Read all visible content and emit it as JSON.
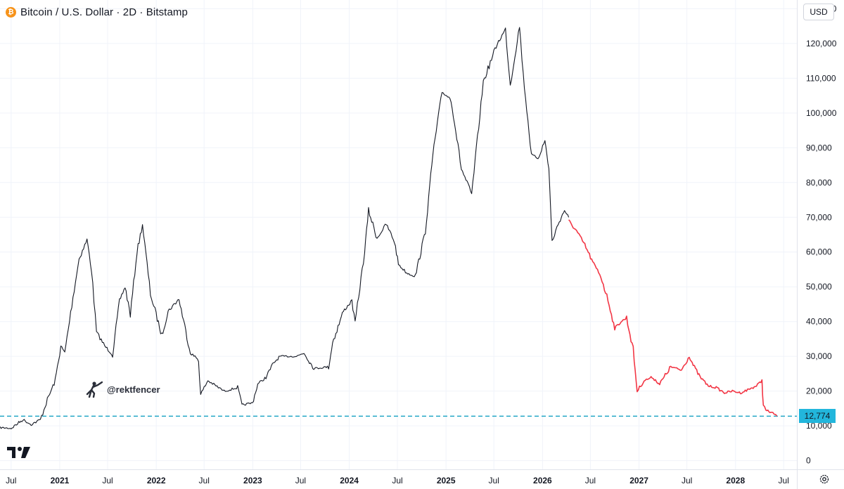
{
  "header": {
    "title": "Bitcoin / U.S. Dollar · 2D · Bitstamp",
    "icon": "bitcoin-icon",
    "icon_glyph": "₿",
    "icon_color": "#f7931a"
  },
  "currency_button": {
    "label": "USD"
  },
  "watermark": {
    "handle": "@rektfencer",
    "icon": "fencer-icon"
  },
  "logo": {
    "icon": "tradingview-logo-icon"
  },
  "settings": {
    "icon": "settings-gear-icon"
  },
  "colors": {
    "history_line": "#131722",
    "projection_line": "#f23645",
    "support_line": "#22a6c6",
    "grid": "#f0f3fa",
    "axis_text": "#131722",
    "badge_bg": "#22b6dc"
  },
  "chart_data": {
    "type": "line",
    "title": "Bitcoin / U.S. Dollar · 2D · Bitstamp",
    "xlabel": "",
    "ylabel": "",
    "x_scale": "time",
    "xlim": [
      "2020-05-20",
      "2028-08-20"
    ],
    "ylim": [
      -2500,
      132500
    ],
    "y_ticks": [
      0,
      10000,
      20000,
      30000,
      40000,
      50000,
      60000,
      70000,
      80000,
      90000,
      100000,
      110000,
      120000,
      130000
    ],
    "y_tick_labels": [
      "0",
      "10,000",
      "20,000",
      "30,000",
      "40,000",
      "50,000",
      "60,000",
      "70,000",
      "80,000",
      "90,000",
      "100,000",
      "110,000",
      "120,000",
      "130,000"
    ],
    "x_ticks": [
      "2020-07-01",
      "2021-01-01",
      "2021-07-01",
      "2022-01-01",
      "2022-07-01",
      "2023-01-01",
      "2023-07-01",
      "2024-01-01",
      "2024-07-01",
      "2025-01-01",
      "2025-07-01",
      "2026-01-01",
      "2026-07-01",
      "2027-01-01",
      "2027-07-01",
      "2028-01-01",
      "2028-07-01"
    ],
    "x_tick_labels": [
      "Jul",
      "2021",
      "Jul",
      "2022",
      "Jul",
      "2023",
      "Jul",
      "2024",
      "Jul",
      "2025",
      "Jul",
      "2026",
      "Jul",
      "2027",
      "Jul",
      "2028",
      "Jul"
    ],
    "bold_tick_labels": [
      "2021",
      "2022",
      "2023",
      "2024",
      "2025",
      "2026",
      "2027",
      "2028"
    ],
    "grid": true,
    "legend": "none",
    "series": [
      {
        "style": "historical",
        "x": [
          "2020-05-20",
          "2020-07-01",
          "2020-08-15",
          "2020-09-15",
          "2020-10-20",
          "2020-11-15",
          "2020-12-15",
          "2021-01-05",
          "2021-01-20",
          "2021-02-20",
          "2021-03-15",
          "2021-04-14",
          "2021-05-01",
          "2021-05-20",
          "2021-06-20",
          "2021-07-20",
          "2021-08-15",
          "2021-09-05",
          "2021-09-25",
          "2021-10-20",
          "2021-11-10",
          "2021-12-10",
          "2022-01-22",
          "2022-02-15",
          "2022-03-28",
          "2022-05-10",
          "2022-06-10",
          "2022-06-18",
          "2022-07-15",
          "2022-08-15",
          "2022-09-15",
          "2022-11-05",
          "2022-11-21",
          "2022-12-31",
          "2023-01-20",
          "2023-02-20",
          "2023-03-20",
          "2023-04-14",
          "2023-06-15",
          "2023-07-14",
          "2023-08-20",
          "2023-10-15",
          "2023-10-30",
          "2023-12-10",
          "2024-01-11",
          "2024-01-23",
          "2024-02-28",
          "2024-03-14",
          "2024-04-15",
          "2024-05-20",
          "2024-06-20",
          "2024-07-05",
          "2024-08-05",
          "2024-09-07",
          "2024-10-15",
          "2024-11-12",
          "2024-12-17",
          "2025-01-20",
          "2025-02-28",
          "2025-04-08",
          "2025-05-22",
          "2025-07-14",
          "2025-08-14",
          "2025-09-01",
          "2025-10-06",
          "2025-10-20",
          "2025-11-20",
          "2025-12-15",
          "2026-01-10",
          "2026-01-25",
          "2026-02-06",
          "2026-03-01",
          "2026-03-25",
          "2026-04-10"
        ],
        "y": [
          9500,
          9300,
          11800,
          10400,
          11800,
          17500,
          23000,
          33000,
          31000,
          47000,
          58000,
          63500,
          55000,
          37000,
          33000,
          30500,
          46000,
          50000,
          42000,
          60000,
          68000,
          48000,
          36000,
          43000,
          46500,
          31000,
          29000,
          19000,
          23000,
          21500,
          20000,
          21000,
          16000,
          16600,
          22000,
          24000,
          28000,
          30000,
          30000,
          31000,
          26500,
          27000,
          34000,
          43000,
          46000,
          39500,
          60000,
          72000,
          64000,
          68000,
          63000,
          56500,
          54000,
          53000,
          66000,
          88000,
          106000,
          104000,
          84000,
          76500,
          109000,
          120000,
          124000,
          108000,
          125000,
          111000,
          88000,
          87000,
          92000,
          84000,
          63000,
          68000,
          72000,
          70000
        ]
      },
      {
        "style": "projection",
        "x": [
          "2026-04-10",
          "2026-05-10",
          "2026-06-10",
          "2026-07-10",
          "2026-08-10",
          "2026-09-10",
          "2026-10-01",
          "2026-10-25",
          "2026-11-15",
          "2026-12-10",
          "2026-12-25",
          "2027-01-20",
          "2027-02-20",
          "2027-03-20",
          "2027-05-01",
          "2027-06-10",
          "2027-07-10",
          "2027-07-25",
          "2027-08-20",
          "2027-09-20",
          "2027-10-20",
          "2027-11-20",
          "2027-12-20",
          "2028-01-20",
          "2028-02-20",
          "2028-03-20",
          "2028-04-10",
          "2028-04-15",
          "2028-04-25",
          "2028-05-10",
          "2028-05-25",
          "2028-06-05"
        ],
        "y": [
          69000,
          66000,
          62000,
          57000,
          53000,
          45000,
          38000,
          40000,
          41000,
          32000,
          20000,
          23000,
          24000,
          22000,
          27000,
          26000,
          30000,
          27500,
          24000,
          21500,
          21000,
          19500,
          20000,
          19500,
          20500,
          21500,
          23000,
          16000,
          14500,
          14000,
          13500,
          12774
        ]
      }
    ],
    "reference_line": {
      "value": 12774,
      "label": "12,774",
      "style": "dashed"
    }
  }
}
